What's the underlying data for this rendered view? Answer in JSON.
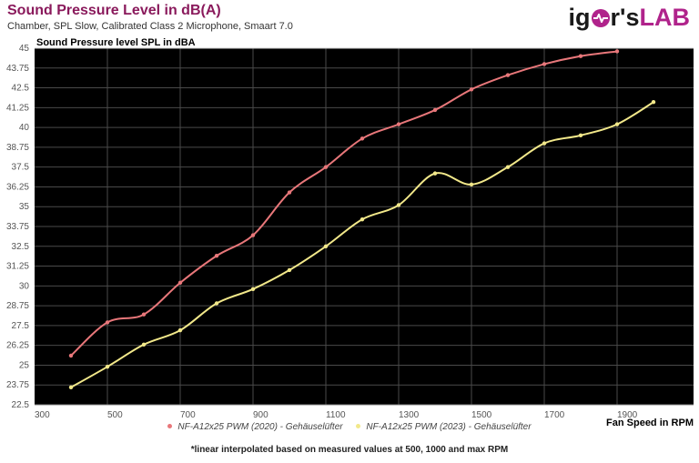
{
  "header": {
    "title": "Sound Pressure Level in dB(A)",
    "subtitle": "Chamber, SPL Slow, Calibrated Class 2 Microphone, Smaart 7.0",
    "logo": {
      "part1": "ig",
      "part2": "r's",
      "part3": "LAB"
    }
  },
  "axes": {
    "y_title": "Sound Pressure level SPL in dBA",
    "x_title": "Fan Speed in RPM"
  },
  "legend": {
    "items": [
      {
        "label": "NF-A12x25 PWM (2020) - Gehäuselüfter",
        "color": "#e8777a"
      },
      {
        "label": "NF-A12x25 PWM (2023) - Gehäuselüfter",
        "color": "#f2e88a"
      }
    ]
  },
  "footnote": "*linear interpolated based on measured values at 500, 1000 and max RPM",
  "colors": {
    "plot_bg": "#000000",
    "grid": "#4a4a4a",
    "series_2020": "#e8777a",
    "series_2023": "#f2e88a",
    "title": "#8a1a5c",
    "logo_accent": "#b0238b"
  },
  "chart_data": {
    "type": "line",
    "title": "Sound Pressure Level in dB(A)",
    "subtitle": "Chamber, SPL Slow, Calibrated Class 2 Microphone, Smaart 7.0",
    "xlabel": "Fan Speed in RPM",
    "ylabel": "Sound Pressure level SPL in dBA",
    "xlim": [
      300,
      2110
    ],
    "ylim": [
      22.5,
      45
    ],
    "x_ticks": [
      300,
      500,
      700,
      900,
      1100,
      1300,
      1500,
      1700,
      1900
    ],
    "y_ticks": [
      22.5,
      23.75,
      25,
      26.25,
      27.5,
      28.75,
      30,
      31.25,
      32.5,
      33.75,
      35,
      36.25,
      37.5,
      38.75,
      40,
      41.25,
      42.5,
      43.75,
      45
    ],
    "grid": true,
    "legend_position": "bottom",
    "series": [
      {
        "name": "NF-A12x25 PWM (2020) - Gehäuselüfter",
        "x": [
          400,
          500,
          600,
          700,
          800,
          900,
          1000,
          1100,
          1200,
          1300,
          1400,
          1500,
          1600,
          1700,
          1800,
          1900
        ],
        "values": [
          25.6,
          27.7,
          28.2,
          30.2,
          31.9,
          33.2,
          35.9,
          37.5,
          39.3,
          40.2,
          41.1,
          42.4,
          43.3,
          44.0,
          44.5,
          44.8
        ]
      },
      {
        "name": "NF-A12x25 PWM (2023) - Gehäuselüfter",
        "x": [
          400,
          500,
          600,
          700,
          800,
          900,
          1000,
          1100,
          1200,
          1300,
          1400,
          1500,
          1600,
          1700,
          1800,
          1900,
          2000
        ],
        "values": [
          23.6,
          24.9,
          26.3,
          27.2,
          28.9,
          29.8,
          31.0,
          32.5,
          34.2,
          35.1,
          37.1,
          36.4,
          37.5,
          39.0,
          39.5,
          40.2,
          41.6
        ]
      }
    ],
    "annotations": [
      "*linear interpolated based on measured values at 500, 1000 and max RPM"
    ]
  }
}
